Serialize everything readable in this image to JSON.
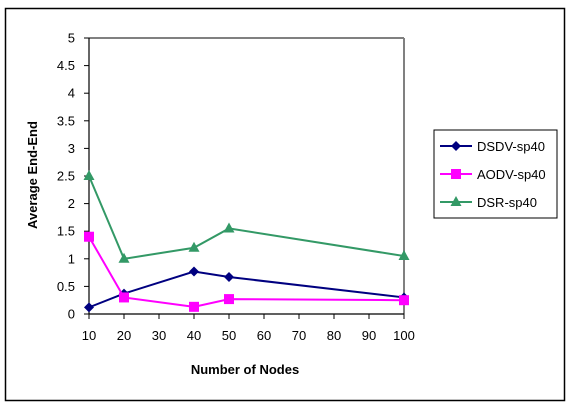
{
  "chart_data": {
    "type": "line",
    "title": "",
    "xlabel": "Number of Nodes",
    "ylabel": "Average End-End",
    "categories": [
      "10",
      "20",
      "30",
      "40",
      "50",
      "60",
      "70",
      "80",
      "90",
      "100"
    ],
    "y_ticks": [
      "0",
      "0.5",
      "1",
      "1.5",
      "2",
      "2.5",
      "3",
      "3.5",
      "4",
      "4.5",
      "5"
    ],
    "ylim": [
      0,
      5
    ],
    "grid": false,
    "legend_position": "right",
    "series": [
      {
        "name": "DSDV-sp40",
        "color": "#000080",
        "marker": "diamond",
        "points": [
          [
            10,
            0.12
          ],
          [
            20,
            0.37
          ],
          [
            40,
            0.77
          ],
          [
            50,
            0.67
          ],
          [
            100,
            0.3
          ]
        ]
      },
      {
        "name": "AODV-sp40",
        "color": "#ff00ff",
        "marker": "square",
        "points": [
          [
            10,
            1.4
          ],
          [
            20,
            0.3
          ],
          [
            40,
            0.13
          ],
          [
            50,
            0.27
          ],
          [
            100,
            0.25
          ]
        ]
      },
      {
        "name": "DSR-sp40",
        "color": "#339966",
        "marker": "triangle",
        "points": [
          [
            10,
            2.5
          ],
          [
            20,
            1.0
          ],
          [
            40,
            1.2
          ],
          [
            50,
            1.55
          ],
          [
            100,
            1.05
          ]
        ]
      }
    ]
  }
}
